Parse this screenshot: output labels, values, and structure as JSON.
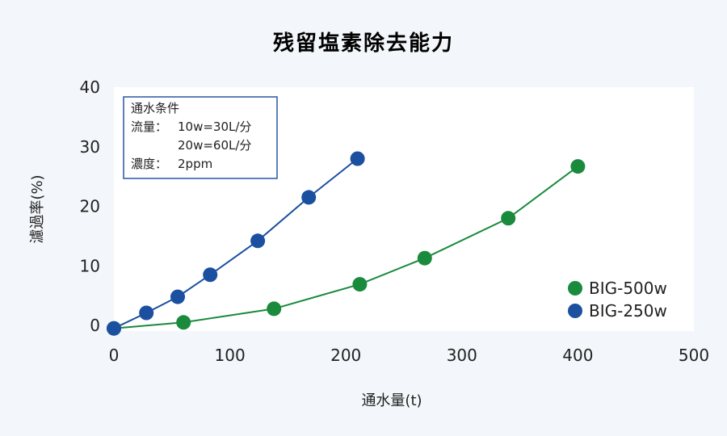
{
  "chart_data": {
    "type": "line",
    "title": "残留塩素除去能力",
    "xlabel": "通水量(t)",
    "ylabel": "濾過率(%)",
    "xlim": [
      0,
      500
    ],
    "ylim": [
      0,
      40
    ],
    "x_ticks": [
      0,
      100,
      200,
      300,
      400,
      500
    ],
    "y_ticks": [
      0,
      10,
      20,
      30,
      40
    ],
    "grid": false,
    "legend_position": "bottom-right",
    "series": [
      {
        "name": "BIG-500w",
        "color": "#1a8a3c",
        "points": [
          [
            0,
            -0.5
          ],
          [
            60,
            0.5
          ],
          [
            138,
            2.8
          ],
          [
            212,
            6.9
          ],
          [
            268,
            11.3
          ],
          [
            340,
            18
          ],
          [
            400,
            26.7
          ]
        ]
      },
      {
        "name": "BIG-250w",
        "color": "#1b4fa0",
        "points": [
          [
            0,
            -0.5
          ],
          [
            28,
            2.1
          ],
          [
            55,
            4.8
          ],
          [
            83,
            8.5
          ],
          [
            124,
            14.2
          ],
          [
            168,
            21.5
          ],
          [
            210,
            28
          ]
        ]
      }
    ],
    "annotation": {
      "heading": "通水条件",
      "lines": [
        {
          "label": "流量：",
          "value": "10w=30L/分"
        },
        {
          "label": "",
          "value": "20w=60L/分"
        },
        {
          "label": "濃度：",
          "value": "2ppm"
        }
      ]
    }
  }
}
